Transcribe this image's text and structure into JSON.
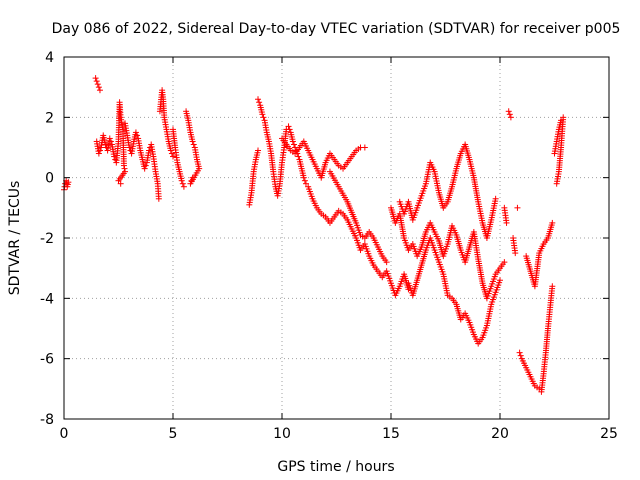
{
  "chart_data": {
    "type": "scatter",
    "title": "Day 086 of 2022, Sidereal Day-to-day VTEC variation (SDTVAR) for receiver p005",
    "xlabel": "GPS time / hours",
    "ylabel": "SDTVAR / TECUs",
    "xlim": [
      0,
      25
    ],
    "ylim": [
      -8,
      4
    ],
    "xticks": [
      0,
      5,
      10,
      15,
      20,
      25
    ],
    "yticks": [
      -8,
      -6,
      -4,
      -2,
      0,
      2,
      4
    ],
    "xtick_labels": [
      "0",
      "5",
      "10",
      "15",
      "20",
      "25"
    ],
    "ytick_labels": [
      "-8",
      "-6",
      "-4",
      "-2",
      "0",
      "2",
      "4"
    ],
    "grid": true,
    "marker": "+",
    "series": [
      {
        "name": "SDTVAR",
        "color": "#ff0000",
        "segments": [
          [
            [
              0.0,
              -0.4
            ],
            [
              0.05,
              -0.2
            ],
            [
              0.1,
              -0.1
            ],
            [
              0.15,
              -0.3
            ],
            [
              0.2,
              -0.15
            ]
          ],
          [
            [
              1.45,
              3.3
            ],
            [
              1.55,
              3.1
            ],
            [
              1.65,
              2.9
            ],
            [
              1.5,
              1.2
            ],
            [
              1.6,
              0.8
            ],
            [
              1.7,
              1.0
            ],
            [
              1.8,
              1.4
            ],
            [
              1.9,
              1.1
            ],
            [
              2.0,
              0.9
            ],
            [
              2.1,
              1.3
            ],
            [
              2.2,
              1.1
            ],
            [
              2.3,
              0.7
            ],
            [
              2.4,
              0.5
            ],
            [
              2.5,
              1.2
            ],
            [
              2.55,
              2.5
            ],
            [
              2.6,
              2.0
            ],
            [
              2.7,
              1.6
            ],
            [
              2.75,
              0.4
            ],
            [
              2.8,
              0.2
            ],
            [
              2.5,
              -0.1
            ],
            [
              2.6,
              -0.2
            ]
          ],
          [
            [
              2.8,
              1.8
            ],
            [
              2.9,
              1.4
            ],
            [
              3.0,
              1.0
            ],
            [
              3.1,
              0.8
            ],
            [
              3.2,
              1.2
            ],
            [
              3.3,
              1.5
            ],
            [
              3.4,
              1.3
            ],
            [
              3.5,
              0.9
            ],
            [
              3.6,
              0.6
            ],
            [
              3.7,
              0.3
            ],
            [
              3.8,
              0.5
            ],
            [
              3.9,
              0.9
            ],
            [
              4.0,
              1.1
            ],
            [
              4.1,
              0.7
            ],
            [
              4.2,
              0.2
            ],
            [
              4.3,
              -0.2
            ],
            [
              4.35,
              -0.7
            ],
            [
              4.4,
              2.2
            ],
            [
              4.5,
              2.9
            ],
            [
              4.55,
              2.6
            ],
            [
              4.6,
              2.0
            ],
            [
              4.7,
              1.6
            ],
            [
              4.8,
              1.2
            ],
            [
              4.9,
              0.9
            ],
            [
              5.0,
              0.7
            ]
          ],
          [
            [
              5.0,
              1.6
            ],
            [
              5.1,
              1.0
            ],
            [
              5.2,
              0.5
            ],
            [
              5.3,
              0.2
            ],
            [
              5.4,
              -0.1
            ],
            [
              5.5,
              -0.3
            ],
            [
              5.6,
              2.2
            ],
            [
              5.7,
              1.9
            ],
            [
              5.8,
              1.5
            ],
            [
              5.9,
              1.2
            ],
            [
              6.0,
              1.0
            ],
            [
              6.1,
              0.6
            ],
            [
              6.2,
              0.3
            ],
            [
              5.8,
              -0.2
            ],
            [
              5.9,
              0.0
            ]
          ],
          [
            [
              8.5,
              -0.9
            ],
            [
              8.6,
              -0.5
            ],
            [
              8.7,
              0.2
            ],
            [
              8.8,
              0.6
            ],
            [
              8.9,
              0.9
            ],
            [
              8.9,
              2.6
            ],
            [
              9.0,
              2.4
            ],
            [
              9.1,
              2.1
            ],
            [
              9.2,
              1.9
            ],
            [
              9.3,
              1.5
            ],
            [
              9.4,
              1.2
            ],
            [
              9.5,
              0.8
            ],
            [
              9.6,
              0.2
            ],
            [
              9.7,
              -0.3
            ],
            [
              9.8,
              -0.6
            ],
            [
              9.9,
              -0.2
            ],
            [
              10.0,
              0.5
            ],
            [
              10.1,
              1.0
            ],
            [
              10.2,
              1.6
            ],
            [
              10.3,
              1.7
            ],
            [
              10.4,
              1.5
            ],
            [
              10.5,
              1.2
            ],
            [
              10.6,
              1.0
            ],
            [
              10.7,
              0.8
            ],
            [
              10.8,
              0.6
            ],
            [
              10.9,
              0.3
            ],
            [
              11.0,
              0.0
            ],
            [
              11.1,
              -0.2
            ]
          ],
          [
            [
              10.0,
              1.3
            ],
            [
              10.2,
              1.1
            ],
            [
              10.4,
              0.9
            ],
            [
              10.6,
              0.8
            ],
            [
              10.8,
              1.0
            ],
            [
              11.0,
              1.2
            ],
            [
              11.2,
              0.9
            ],
            [
              11.4,
              0.6
            ],
            [
              11.6,
              0.3
            ],
            [
              11.8,
              0.0
            ],
            [
              12.0,
              0.5
            ],
            [
              12.2,
              0.8
            ],
            [
              12.4,
              0.6
            ],
            [
              12.6,
              0.4
            ],
            [
              12.8,
              0.3
            ],
            [
              13.0,
              0.5
            ],
            [
              13.2,
              0.7
            ],
            [
              13.4,
              0.9
            ],
            [
              13.6,
              1.0
            ],
            [
              13.8,
              1.0
            ]
          ],
          [
            [
              11.2,
              -0.3
            ],
            [
              11.4,
              -0.7
            ],
            [
              11.6,
              -1.0
            ],
            [
              11.8,
              -1.2
            ],
            [
              12.0,
              -1.3
            ],
            [
              12.2,
              -1.5
            ],
            [
              12.4,
              -1.3
            ],
            [
              12.6,
              -1.1
            ],
            [
              12.8,
              -1.2
            ],
            [
              13.0,
              -1.4
            ],
            [
              13.2,
              -1.7
            ],
            [
              13.4,
              -2.0
            ],
            [
              13.6,
              -2.4
            ],
            [
              13.8,
              -2.2
            ],
            [
              14.0,
              -2.6
            ],
            [
              14.2,
              -2.9
            ],
            [
              14.4,
              -3.1
            ],
            [
              14.6,
              -3.3
            ],
            [
              14.8,
              -3.1
            ],
            [
              15.0,
              -3.5
            ],
            [
              15.2,
              -3.9
            ],
            [
              15.4,
              -3.6
            ],
            [
              15.6,
              -3.2
            ],
            [
              15.8,
              -3.7
            ]
          ],
          [
            [
              12.2,
              0.2
            ],
            [
              12.6,
              -0.3
            ],
            [
              13.0,
              -0.8
            ],
            [
              13.4,
              -1.5
            ],
            [
              13.6,
              -1.9
            ],
            [
              13.8,
              -2.0
            ],
            [
              14.0,
              -1.8
            ],
            [
              14.2,
              -2.0
            ],
            [
              14.4,
              -2.3
            ],
            [
              14.6,
              -2.6
            ],
            [
              14.8,
              -2.8
            ]
          ],
          [
            [
              15.0,
              -1.0
            ],
            [
              15.2,
              -1.5
            ],
            [
              15.4,
              -1.2
            ],
            [
              15.6,
              -2.0
            ],
            [
              15.8,
              -2.4
            ],
            [
              16.0,
              -2.2
            ],
            [
              16.2,
              -2.6
            ],
            [
              16.4,
              -2.3
            ],
            [
              16.6,
              -1.8
            ],
            [
              16.8,
              -1.5
            ],
            [
              17.0,
              -1.8
            ],
            [
              17.2,
              -2.1
            ],
            [
              17.4,
              -2.6
            ],
            [
              17.6,
              -2.2
            ],
            [
              17.8,
              -1.6
            ],
            [
              18.0,
              -1.9
            ],
            [
              18.2,
              -2.4
            ],
            [
              18.4,
              -2.8
            ],
            [
              18.6,
              -2.3
            ],
            [
              18.8,
              -1.8
            ],
            [
              19.0,
              -2.7
            ],
            [
              19.2,
              -3.5
            ],
            [
              19.4,
              -4.0
            ],
            [
              19.6,
              -3.6
            ],
            [
              19.8,
              -3.2
            ],
            [
              20.0,
              -3.0
            ],
            [
              20.2,
              -2.8
            ]
          ],
          [
            [
              15.4,
              -0.8
            ],
            [
              15.6,
              -1.2
            ],
            [
              15.8,
              -0.8
            ],
            [
              16.0,
              -1.4
            ],
            [
              16.2,
              -1.0
            ],
            [
              16.4,
              -0.6
            ],
            [
              16.6,
              -0.2
            ],
            [
              16.8,
              0.5
            ],
            [
              17.0,
              0.2
            ],
            [
              17.2,
              -0.5
            ],
            [
              17.4,
              -1.0
            ],
            [
              17.6,
              -0.8
            ],
            [
              17.8,
              -0.3
            ],
            [
              18.0,
              0.3
            ],
            [
              18.2,
              0.8
            ],
            [
              18.4,
              1.1
            ],
            [
              18.6,
              0.6
            ],
            [
              18.8,
              0.0
            ],
            [
              19.0,
              -0.8
            ],
            [
              19.2,
              -1.5
            ],
            [
              19.4,
              -2.0
            ],
            [
              19.6,
              -1.4
            ],
            [
              19.8,
              -0.7
            ]
          ],
          [
            [
              15.8,
              -3.5
            ],
            [
              16.0,
              -3.9
            ],
            [
              16.2,
              -3.4
            ],
            [
              16.4,
              -2.9
            ],
            [
              16.6,
              -2.4
            ],
            [
              16.8,
              -2.0
            ],
            [
              17.0,
              -2.4
            ],
            [
              17.2,
              -2.8
            ],
            [
              17.4,
              -3.2
            ],
            [
              17.6,
              -3.9
            ],
            [
              17.8,
              -4.0
            ],
            [
              18.0,
              -4.2
            ],
            [
              18.2,
              -4.7
            ],
            [
              18.4,
              -4.5
            ],
            [
              18.6,
              -4.8
            ],
            [
              18.8,
              -5.2
            ],
            [
              19.0,
              -5.5
            ],
            [
              19.2,
              -5.3
            ],
            [
              19.4,
              -4.9
            ],
            [
              19.6,
              -4.2
            ],
            [
              19.8,
              -3.8
            ],
            [
              20.0,
              -3.4
            ]
          ],
          [
            [
              20.2,
              -1.0
            ],
            [
              20.3,
              -1.5
            ],
            [
              20.4,
              2.2
            ],
            [
              20.5,
              2.0
            ],
            [
              20.6,
              -2.0
            ],
            [
              20.7,
              -2.5
            ],
            [
              20.8,
              -1.0
            ],
            [
              20.9,
              -5.8
            ],
            [
              21.0,
              -6.0
            ],
            [
              21.2,
              -6.3
            ],
            [
              21.4,
              -6.6
            ],
            [
              21.6,
              -6.9
            ],
            [
              21.8,
              -7.0
            ],
            [
              21.9,
              -7.1
            ],
            [
              22.0,
              -6.5
            ],
            [
              22.1,
              -5.8
            ],
            [
              22.2,
              -5.0
            ],
            [
              22.3,
              -4.3
            ],
            [
              22.4,
              -3.6
            ]
          ],
          [
            [
              21.2,
              -2.6
            ],
            [
              21.4,
              -3.1
            ],
            [
              21.6,
              -3.6
            ],
            [
              21.8,
              -2.5
            ],
            [
              22.0,
              -2.2
            ],
            [
              22.2,
              -2.0
            ],
            [
              22.4,
              -1.5
            ],
            [
              22.5,
              0.8
            ],
            [
              22.6,
              1.2
            ],
            [
              22.7,
              1.6
            ],
            [
              22.8,
              1.9
            ],
            [
              22.9,
              2.0
            ],
            [
              22.8,
              1.0
            ],
            [
              22.7,
              0.2
            ],
            [
              22.6,
              -0.2
            ]
          ]
        ]
      }
    ]
  }
}
